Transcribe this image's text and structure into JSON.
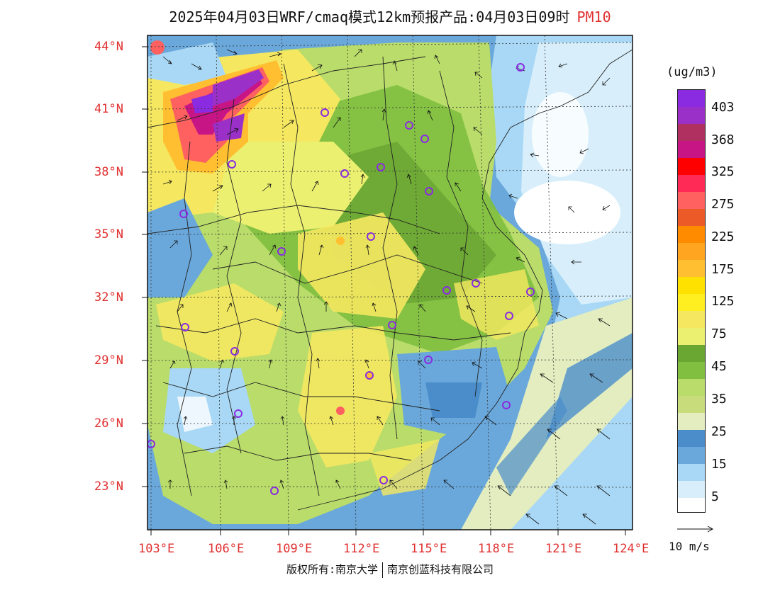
{
  "title": {
    "main": "2025年04月03日WRF/cmaq模式12km预报产品:04月03日09时",
    "product": "PM10"
  },
  "map": {
    "lat_labels": [
      "44°N",
      "41°N",
      "38°N",
      "35°N",
      "32°N",
      "29°N",
      "26°N",
      "23°N"
    ],
    "lon_labels": [
      "103°E",
      "106°E",
      "109°E",
      "112°E",
      "115°E",
      "118°E",
      "121°E",
      "124°E"
    ]
  },
  "colorbar": {
    "unit": "(ug/m3)",
    "labels": [
      "403",
      "368",
      "325",
      "275",
      "225",
      "175",
      "125",
      "75",
      "45",
      "35",
      "25",
      "15",
      "5"
    ],
    "colors": [
      "#8a2be2",
      "#9b30c8",
      "#b03060",
      "#c71585",
      "#ff0000",
      "#ff2a55",
      "#ff6060",
      "#ec5a28",
      "#ff8c00",
      "#ffa520",
      "#ffbf30",
      "#ffe100",
      "#ffee20",
      "#f5e860",
      "#ecf070",
      "#6aa632",
      "#80bf40",
      "#b9dc6a",
      "#c8dc7c",
      "#e3edc0",
      "#4a8dca",
      "#6aa8db",
      "#a8d8f5",
      "#d8effb",
      "#ffffff"
    ]
  },
  "wind_reference": "10 m/s",
  "copyright": {
    "left": "版权所有:南京大学",
    "right": "南京创蓝科技有限公司"
  }
}
